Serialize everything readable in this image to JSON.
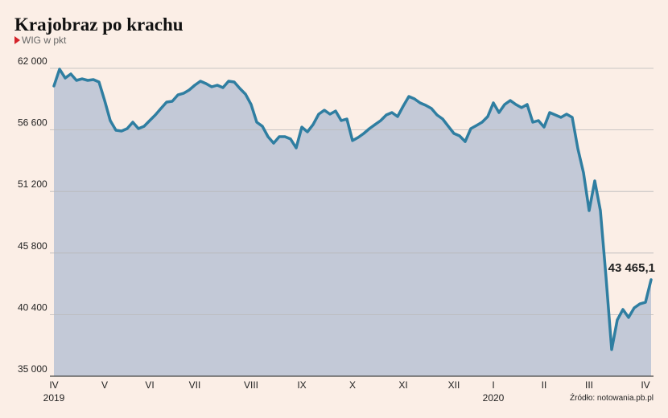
{
  "chart_data": {
    "type": "area-line",
    "title": "Krajobraz po krachu",
    "subtitle": "WIG w pkt",
    "source": "Źródło: notowania.pb.pl",
    "categories": [
      "IV",
      null,
      null,
      null,
      null,
      null,
      null,
      null,
      null,
      "V",
      null,
      null,
      null,
      null,
      null,
      null,
      null,
      "VI",
      null,
      null,
      null,
      null,
      null,
      null,
      null,
      "VII",
      null,
      null,
      null,
      null,
      null,
      null,
      null,
      null,
      null,
      "VIII",
      null,
      null,
      null,
      null,
      null,
      null,
      null,
      null,
      "IX",
      null,
      null,
      null,
      null,
      null,
      null,
      null,
      null,
      "X",
      null,
      null,
      null,
      null,
      null,
      null,
      null,
      null,
      "XI",
      null,
      null,
      null,
      null,
      null,
      null,
      null,
      null,
      "XII",
      null,
      null,
      null,
      null,
      null,
      null,
      "I",
      null,
      null,
      null,
      null,
      null,
      null,
      null,
      null,
      "II",
      null,
      null,
      null,
      null,
      null,
      null,
      null,
      "III",
      null,
      null,
      null,
      null,
      null,
      null,
      null,
      null,
      null,
      "IV",
      null
    ],
    "x_years": [
      "2019",
      null,
      null,
      null,
      null,
      null,
      null,
      null,
      null,
      null,
      null,
      null,
      null,
      null,
      null,
      null,
      null,
      null,
      null,
      null,
      null,
      null,
      null,
      null,
      null,
      null,
      null,
      null,
      null,
      null,
      null,
      null,
      null,
      null,
      null,
      null,
      null,
      null,
      null,
      null,
      null,
      null,
      null,
      null,
      null,
      null,
      null,
      null,
      null,
      null,
      null,
      null,
      null,
      null,
      null,
      null,
      null,
      null,
      null,
      null,
      null,
      null,
      null,
      null,
      null,
      null,
      null,
      null,
      null,
      null,
      null,
      null,
      null,
      null,
      null,
      null,
      null,
      null,
      "2020",
      null,
      null,
      null,
      null,
      null,
      null,
      null,
      null,
      null,
      null,
      null,
      null,
      null,
      null,
      null,
      null,
      null,
      null,
      null,
      null,
      null,
      null,
      null,
      null,
      null,
      null,
      null,
      null
    ],
    "series": [
      {
        "name": "WIG",
        "color": "#2f7ea1",
        "fill": "#c3c9d7",
        "values": [
          60450,
          61930,
          61150,
          61510,
          60940,
          61080,
          60940,
          61010,
          60800,
          59180,
          57420,
          56570,
          56500,
          56710,
          57280,
          56710,
          56920,
          57420,
          57910,
          58480,
          59040,
          59110,
          59670,
          59810,
          60100,
          60520,
          60870,
          60660,
          60380,
          60520,
          60310,
          60870,
          60800,
          60240,
          59740,
          58830,
          57280,
          56920,
          56010,
          55440,
          56010,
          56010,
          55800,
          55020,
          56850,
          56430,
          57070,
          57980,
          58330,
          57980,
          58260,
          57420,
          57560,
          55660,
          55940,
          56290,
          56710,
          57070,
          57420,
          57910,
          58120,
          57770,
          58690,
          59530,
          59320,
          58970,
          58760,
          58480,
          57910,
          57560,
          56920,
          56290,
          56080,
          55580,
          56710,
          56990,
          57280,
          57770,
          58970,
          58120,
          58830,
          59180,
          58830,
          58550,
          58830,
          57280,
          57420,
          56850,
          58120,
          57910,
          57700,
          57980,
          57700,
          54950,
          52840,
          49520,
          52130,
          49520,
          43670,
          37330,
          39940,
          40850,
          40150,
          40990,
          41340,
          41480,
          43465.1
        ],
        "value_labels": [
          null,
          null,
          null,
          null,
          null,
          null,
          null,
          null,
          null,
          null,
          null,
          null,
          null,
          null,
          null,
          null,
          null,
          null,
          null,
          null,
          null,
          null,
          null,
          null,
          null,
          null,
          null,
          null,
          null,
          null,
          null,
          null,
          null,
          null,
          null,
          null,
          null,
          null,
          null,
          null,
          null,
          null,
          null,
          null,
          null,
          null,
          null,
          null,
          null,
          null,
          null,
          null,
          null,
          null,
          null,
          null,
          null,
          null,
          null,
          null,
          null,
          null,
          null,
          null,
          null,
          null,
          null,
          null,
          null,
          null,
          null,
          null,
          null,
          null,
          null,
          null,
          null,
          null,
          null,
          null,
          null,
          null,
          null,
          null,
          null,
          null,
          null,
          null,
          null,
          null,
          null,
          null,
          null,
          null,
          null,
          null,
          null,
          null,
          null,
          null,
          null,
          null,
          null,
          null,
          null,
          null,
          "43 465,1"
        ]
      }
    ],
    "ylim": [
      35000,
      62000
    ],
    "yticks": [
      {
        "value": 35000,
        "label": "35 000"
      },
      {
        "value": 40400,
        "label": "40 400"
      },
      {
        "value": 45800,
        "label": "45 800"
      },
      {
        "value": 51200,
        "label": "51 200"
      },
      {
        "value": 56600,
        "label": "56 600"
      },
      {
        "value": 62000,
        "label": "62 000"
      }
    ],
    "grid": true
  }
}
